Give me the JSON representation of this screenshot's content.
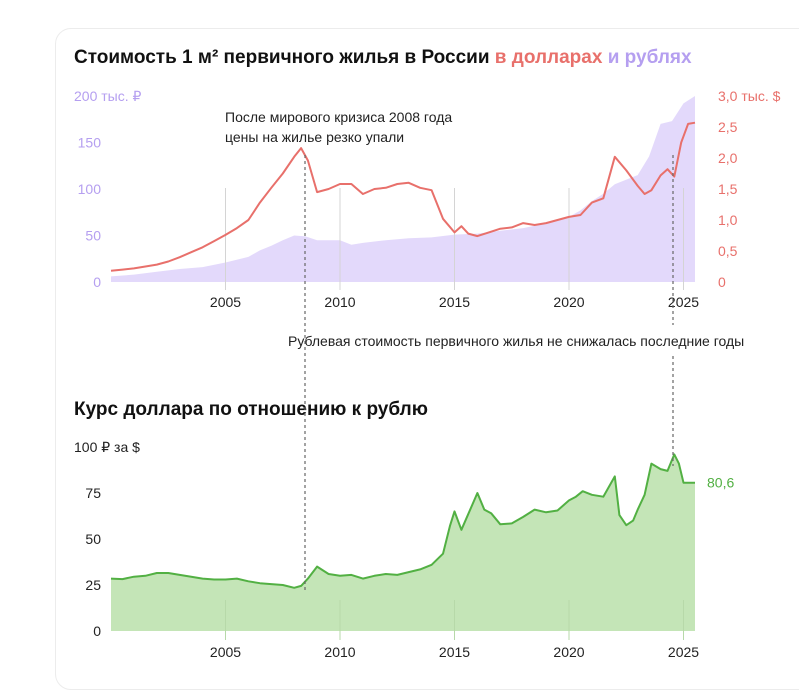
{
  "chart_data": [
    {
      "type": "line",
      "title": "Стоимость 1 м² первичного жилья в России",
      "title_usd": "в долларах",
      "title_and": "и",
      "title_rub": "рублях",
      "y_left_label": "200 тыс. ₽",
      "y_left_ticks": [
        "0",
        "50",
        "100",
        "150"
      ],
      "y_left_lim": [
        0,
        200
      ],
      "y_right_label": "3,0 тыс. $",
      "y_right_ticks": [
        "0",
        "0,5",
        "1,0",
        "1,5",
        "2,0",
        "2,5"
      ],
      "y_right_lim": [
        0,
        3.0
      ],
      "x_ticks": [
        "2005",
        "2010",
        "2015",
        "2020",
        "2025"
      ],
      "annotation_top": [
        "После мирового кризиса 2008 года",
        "цены на жилье резко упали"
      ],
      "annotation_mid": "Рублевая стоимость первичного жилья не снижалась последние годы",
      "colors": {
        "usd": "#e8706b",
        "rub_fill": "#e3d9fb",
        "rub_text": "#b59ff0"
      },
      "series": [
        {
          "name": "рублях",
          "style": "area",
          "axis": "left",
          "x": [
            2000.0,
            2001.0,
            2002.0,
            2003.0,
            2004.0,
            2005.0,
            2006.0,
            2006.5,
            2007.0,
            2007.5,
            2008.0,
            2008.5,
            2009.0,
            2010.0,
            2010.5,
            2011.0,
            2012.0,
            2013.0,
            2014.0,
            2015.0,
            2016.0,
            2017.0,
            2018.0,
            2019.0,
            2020.0,
            2020.5,
            2021.0,
            2021.5,
            2022.0,
            2023.0,
            2023.5,
            2024.0,
            2024.5,
            2025.0,
            2025.5
          ],
          "values": [
            6,
            8,
            11,
            14,
            16,
            21,
            27,
            34,
            39,
            45,
            50,
            49,
            45,
            45,
            40,
            42,
            45,
            47,
            48,
            51,
            52,
            55,
            58,
            63,
            70,
            77,
            87,
            95,
            105,
            115,
            135,
            170,
            173,
            192,
            200
          ]
        },
        {
          "name": "долларах",
          "style": "line",
          "axis": "right",
          "x": [
            2000.0,
            2000.5,
            2001.0,
            2001.5,
            2002.0,
            2002.5,
            2003.0,
            2003.5,
            2004.0,
            2004.5,
            2005.0,
            2005.5,
            2006.0,
            2006.5,
            2007.0,
            2007.5,
            2008.0,
            2008.3,
            2008.6,
            2009.0,
            2009.5,
            2010.0,
            2010.5,
            2011.0,
            2011.5,
            2012.0,
            2012.5,
            2013.0,
            2013.5,
            2014.0,
            2014.5,
            2015.0,
            2015.3,
            2015.6,
            2016.0,
            2016.5,
            2017.0,
            2017.5,
            2018.0,
            2018.5,
            2019.0,
            2019.5,
            2020.0,
            2020.5,
            2021.0,
            2021.5,
            2022.0,
            2022.5,
            2023.0,
            2023.3,
            2023.6,
            2024.0,
            2024.3,
            2024.6,
            2024.9,
            2025.2,
            2025.5
          ],
          "values": [
            0.18,
            0.2,
            0.22,
            0.25,
            0.28,
            0.33,
            0.4,
            0.48,
            0.56,
            0.66,
            0.76,
            0.87,
            1.0,
            1.28,
            1.52,
            1.75,
            2.02,
            2.16,
            1.96,
            1.45,
            1.5,
            1.58,
            1.58,
            1.42,
            1.5,
            1.52,
            1.58,
            1.6,
            1.52,
            1.48,
            1.02,
            0.8,
            0.9,
            0.78,
            0.74,
            0.8,
            0.86,
            0.88,
            0.95,
            0.92,
            0.95,
            1.0,
            1.05,
            1.08,
            1.28,
            1.35,
            2.02,
            1.8,
            1.55,
            1.42,
            1.48,
            1.72,
            1.82,
            1.7,
            2.25,
            2.55,
            2.57
          ]
        }
      ]
    },
    {
      "type": "area",
      "title": "Курс доллара по отношению к рублю",
      "y_label": "100 ₽ за $",
      "y_ticks": [
        "0",
        "25",
        "50",
        "75"
      ],
      "ylim": [
        0,
        100
      ],
      "x_ticks": [
        "2005",
        "2010",
        "2015",
        "2020",
        "2025"
      ],
      "end_label": "80,6",
      "colors": {
        "line": "#52b043",
        "fill": "#c4e5b7",
        "end_label": "#52b043"
      },
      "series": [
        {
          "name": "Курс доллара",
          "x": [
            2000.0,
            2000.5,
            2001.0,
            2001.5,
            2002.0,
            2002.5,
            2003.0,
            2003.5,
            2004.0,
            2004.5,
            2005.0,
            2005.5,
            2006.0,
            2006.5,
            2007.0,
            2007.5,
            2008.0,
            2008.3,
            2008.6,
            2009.0,
            2009.5,
            2010.0,
            2010.5,
            2011.0,
            2011.5,
            2012.0,
            2012.5,
            2013.0,
            2013.5,
            2014.0,
            2014.5,
            2014.8,
            2015.0,
            2015.3,
            2015.6,
            2016.0,
            2016.3,
            2016.6,
            2017.0,
            2017.5,
            2018.0,
            2018.5,
            2019.0,
            2019.5,
            2020.0,
            2020.3,
            2020.6,
            2021.0,
            2021.5,
            2022.0,
            2022.2,
            2022.5,
            2022.8,
            2023.0,
            2023.3,
            2023.6,
            2024.0,
            2024.3,
            2024.6,
            2024.8,
            2025.0,
            2025.5
          ],
          "values": [
            28.5,
            28.2,
            29.5,
            30.0,
            31.5,
            31.5,
            30.5,
            29.5,
            28.5,
            28.0,
            28.0,
            28.5,
            27.0,
            26.0,
            25.5,
            25.0,
            23.5,
            24.5,
            28.5,
            35.0,
            31.0,
            30.0,
            30.5,
            28.5,
            30.0,
            31.0,
            30.5,
            32.0,
            33.5,
            36.0,
            42.0,
            57.0,
            65.0,
            55.0,
            63.5,
            75.0,
            66.0,
            64.0,
            58.0,
            58.5,
            62.0,
            66.0,
            64.5,
            65.5,
            71.0,
            73.0,
            76.0,
            74.0,
            73.0,
            84.0,
            63.0,
            57.5,
            60.0,
            66.0,
            74.0,
            91.0,
            88.0,
            87.0,
            96.0,
            91.0,
            80.6,
            80.6
          ]
        }
      ]
    }
  ]
}
